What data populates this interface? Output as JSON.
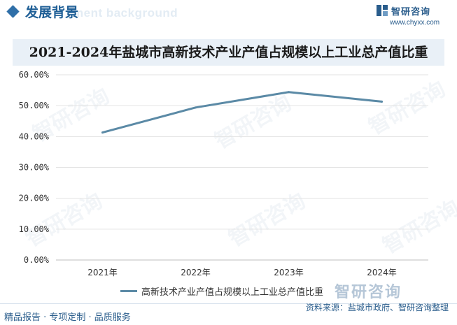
{
  "header": {
    "section_title": "发展背景",
    "section_subtitle_en": "ment background"
  },
  "logo": {
    "name": "智研咨询",
    "url": "www.chyxx.com"
  },
  "watermark_text": "智研咨询",
  "colors": {
    "accent": "#2f6fa8",
    "line": "#5b8aa6",
    "title_band": "#e9f0f7"
  },
  "chart_data": {
    "type": "line",
    "title": "2021-2024年盐城市高新技术产业产值占规模以上工业总产值比重",
    "categories": [
      "2021年",
      "2022年",
      "2023年",
      "2024年"
    ],
    "series": [
      {
        "name": "高新技术产业产值占规模以上工业总产值比重",
        "values": [
          41.3,
          49.4,
          54.4,
          51.3
        ]
      }
    ],
    "ylim": [
      0,
      60
    ],
    "yticks": [
      "0.00%",
      "10.00%",
      "20.00%",
      "30.00%",
      "40.00%",
      "50.00%",
      "60.00%"
    ],
    "grid": true,
    "legend_position": "bottom-left"
  },
  "legend_brand": "智研咨询",
  "footer": {
    "left_text": "精品报告 · 专项定制 · 品质服务",
    "source": "资料来源：盐城市政府、智研咨询整理"
  }
}
